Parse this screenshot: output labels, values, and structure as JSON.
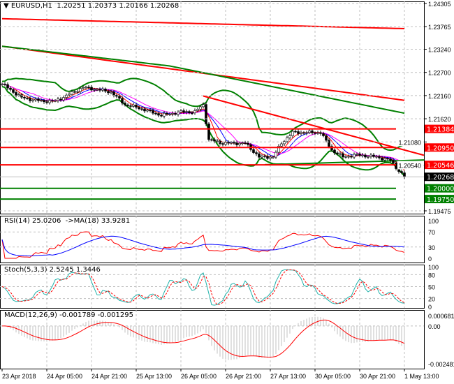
{
  "header": {
    "symbol": "EURUSD,H1",
    "ohlc": "1.20251 1.20373 1.20166 1.20268"
  },
  "chart_data": [
    {
      "type": "candlestick",
      "title": "EURUSD,H1",
      "ylim": [
        1.19475,
        1.24305
      ],
      "y_ticks": [
        "1.24305",
        "1.23765",
        "1.23240",
        "1.22700",
        "1.22160",
        "1.21620",
        "1.21080",
        "1.20540",
        "1.19475"
      ],
      "x_ticks": [
        "23 Apr 2018",
        "24 Apr 05:00",
        "24 Apr 21:00",
        "25 Apr 13:00",
        "26 Apr 05:00",
        "26 Apr 21:00",
        "27 Apr 13:00",
        "30 Apr 05:00",
        "30 Apr 21:00",
        "1 May 13:00"
      ],
      "close_keypoints_bar_price": [
        [
          0,
          1.2243
        ],
        [
          7,
          1.2211
        ],
        [
          14,
          1.2203
        ],
        [
          19,
          1.2203
        ],
        [
          24,
          1.2219
        ],
        [
          29,
          1.2235
        ],
        [
          34,
          1.223
        ],
        [
          39,
          1.2224
        ],
        [
          44,
          1.2195
        ],
        [
          49,
          1.2187
        ],
        [
          57,
          1.217
        ],
        [
          64,
          1.2178
        ],
        [
          69,
          1.2178
        ],
        [
          72,
          1.2195
        ],
        [
          74,
          1.2113
        ],
        [
          79,
          1.2105
        ],
        [
          87,
          1.2105
        ],
        [
          92,
          1.2073
        ],
        [
          97,
          1.2073
        ],
        [
          100,
          1.2105
        ],
        [
          104,
          1.213
        ],
        [
          109,
          1.213
        ],
        [
          114,
          1.213
        ],
        [
          118,
          1.2089
        ],
        [
          122,
          1.2073
        ],
        [
          127,
          1.2078
        ],
        [
          134,
          1.2073
        ],
        [
          139,
          1.2065
        ],
        [
          142,
          1.2041
        ],
        [
          144,
          1.2027
        ]
      ],
      "last_price": "1.20268",
      "levels": [
        {
          "price": 1.21384,
          "label": "1.21384",
          "color": "#ff0000"
        },
        {
          "price": 1.2095,
          "label": "1.20950",
          "color": "#ff0000"
        },
        {
          "price": 1.20546,
          "label": "1.20546",
          "color": "#ff0000"
        },
        {
          "price": 1.2,
          "label": "1.20000",
          "color": "#008000"
        },
        {
          "price": 1.1975,
          "label": "1.19750",
          "color": "#008000"
        }
      ],
      "moving_averages": [
        {
          "color": "#ff0000",
          "points_bar_price": [
            [
              0,
              1.2395
            ],
            [
              144,
              1.2372
            ]
          ]
        },
        {
          "color": "#ff0000",
          "points_bar_price": [
            [
              0,
              1.2331
            ],
            [
              144,
              1.2205
            ]
          ]
        },
        {
          "color": "#008000",
          "points_bar_price": [
            [
              0,
              1.2331
            ],
            [
              60,
              1.2285
            ],
            [
              144,
              1.2175
            ]
          ]
        }
      ],
      "trendlines": [
        {
          "color": "#ff0000",
          "points_bar_price": [
            [
              72,
              1.2215
            ],
            [
              151,
              1.2077
            ]
          ]
        },
        {
          "color": "#008000",
          "points_bar_price": [
            [
              94,
              1.2055
            ],
            [
              151,
              1.2066
            ]
          ]
        }
      ]
    },
    {
      "type": "line",
      "title": "RSI(14) 25.0206  ->MA(18) 33.9281",
      "ylim": [
        0,
        100
      ],
      "y_ticks": [
        "100",
        "70",
        "30",
        "0"
      ],
      "series_colors": [
        "#ff0000",
        "#0000ff"
      ]
    },
    {
      "type": "line",
      "title": "Stoch(5,3,3) 2.5245 1.3446",
      "ylim": [
        0,
        100
      ],
      "y_ticks": [
        "100",
        "80",
        "50",
        "20",
        "0"
      ],
      "series_colors": [
        "#20b2aa",
        "#ff0000"
      ]
    },
    {
      "type": "bar",
      "title": "MACD(12,26,9) -0.001789 -0.001295",
      "ylim": [
        -0.002481,
        0.000681
      ],
      "y_ticks": [
        "0.000681",
        "0.00",
        "-0.002481"
      ],
      "series_colors": [
        "#c0c0c0",
        "#ff0000"
      ]
    }
  ]
}
